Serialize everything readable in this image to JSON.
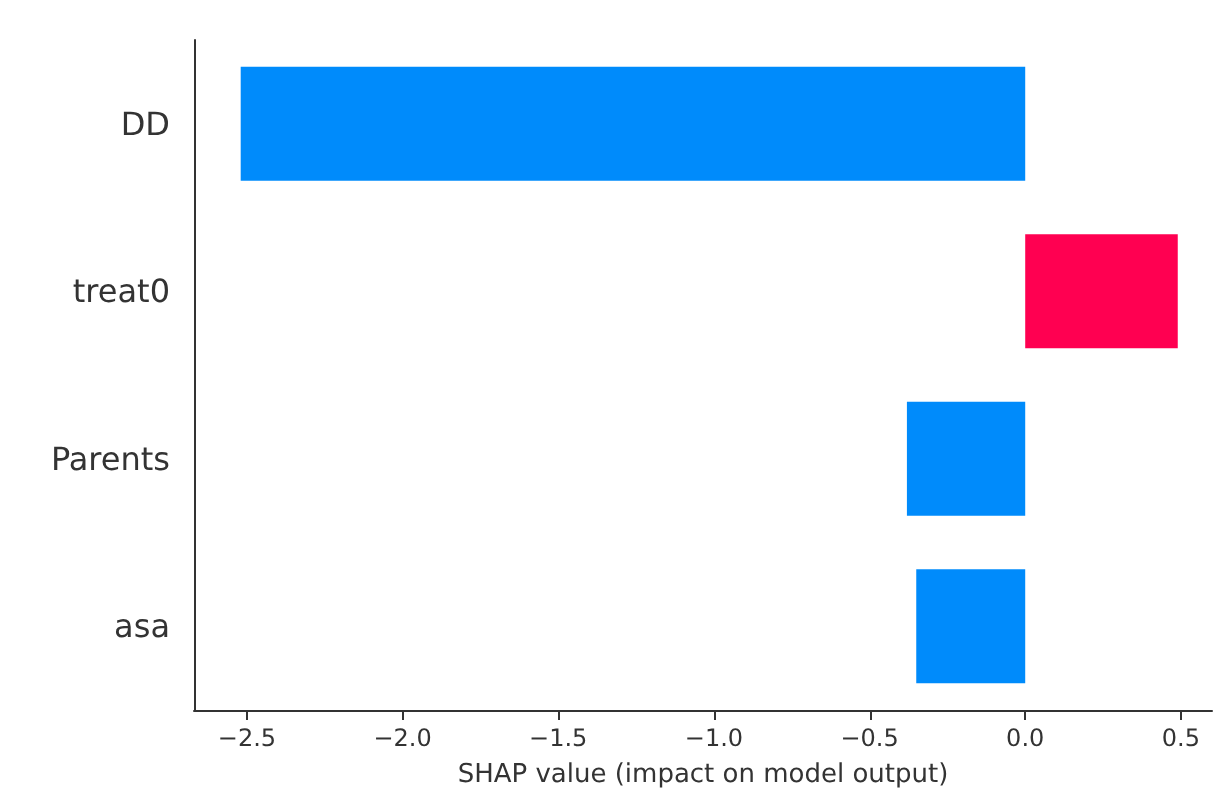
{
  "chart_data": {
    "type": "bar",
    "orientation": "horizontal",
    "xlabel": "SHAP value (impact on model output)",
    "categories": [
      "DD",
      "treat0",
      "Parents",
      "asa"
    ],
    "values": [
      -2.52,
      0.49,
      -0.38,
      -0.35
    ],
    "colors": [
      "#008bfb",
      "#ff0051",
      "#008bfb",
      "#008bfb"
    ],
    "xlim": [
      -2.67,
      0.6
    ],
    "xticks": [
      {
        "value": -2.5,
        "label": "−2.5"
      },
      {
        "value": -2.0,
        "label": "−2.0"
      },
      {
        "value": -1.5,
        "label": "−1.5"
      },
      {
        "value": -1.0,
        "label": "−1.0"
      },
      {
        "value": -0.5,
        "label": "−0.5"
      },
      {
        "value": 0.0,
        "label": "0.0"
      },
      {
        "value": 0.5,
        "label": "0.5"
      }
    ],
    "grid": false
  }
}
